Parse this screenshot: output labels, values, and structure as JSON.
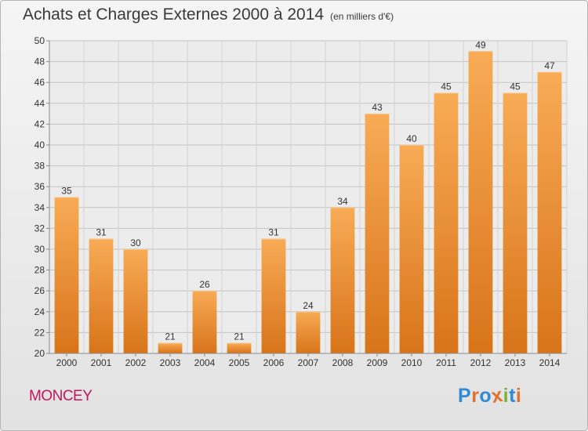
{
  "header": {
    "title": "Achats et Charges Externes 2000 à 2014",
    "unit_note": "(en milliers d'€)"
  },
  "footer": {
    "town": "MONCEY",
    "logo_letters": [
      "P",
      "r",
      "o",
      "x",
      "i",
      "t",
      "i"
    ],
    "logo_colors": [
      "#2e8bd6",
      "#e3702c",
      "#2e8bd6",
      "#e3702c",
      "#7ab23a",
      "#2e8bd6",
      "#e3702c"
    ]
  },
  "chart_data": {
    "type": "bar",
    "categories": [
      "2000",
      "2001",
      "2002",
      "2003",
      "2004",
      "2005",
      "2006",
      "2007",
      "2008",
      "2009",
      "2010",
      "2011",
      "2012",
      "2013",
      "2014"
    ],
    "values": [
      35,
      31,
      30,
      21,
      26,
      21,
      31,
      24,
      34,
      43,
      40,
      45,
      49,
      45,
      47
    ],
    "ylim": [
      20,
      50
    ],
    "yticks": [
      20,
      22,
      24,
      26,
      28,
      30,
      32,
      34,
      36,
      38,
      40,
      42,
      44,
      46,
      48,
      50
    ],
    "grid": true,
    "bar_color": "#f08a2a",
    "data_labels": true
  }
}
